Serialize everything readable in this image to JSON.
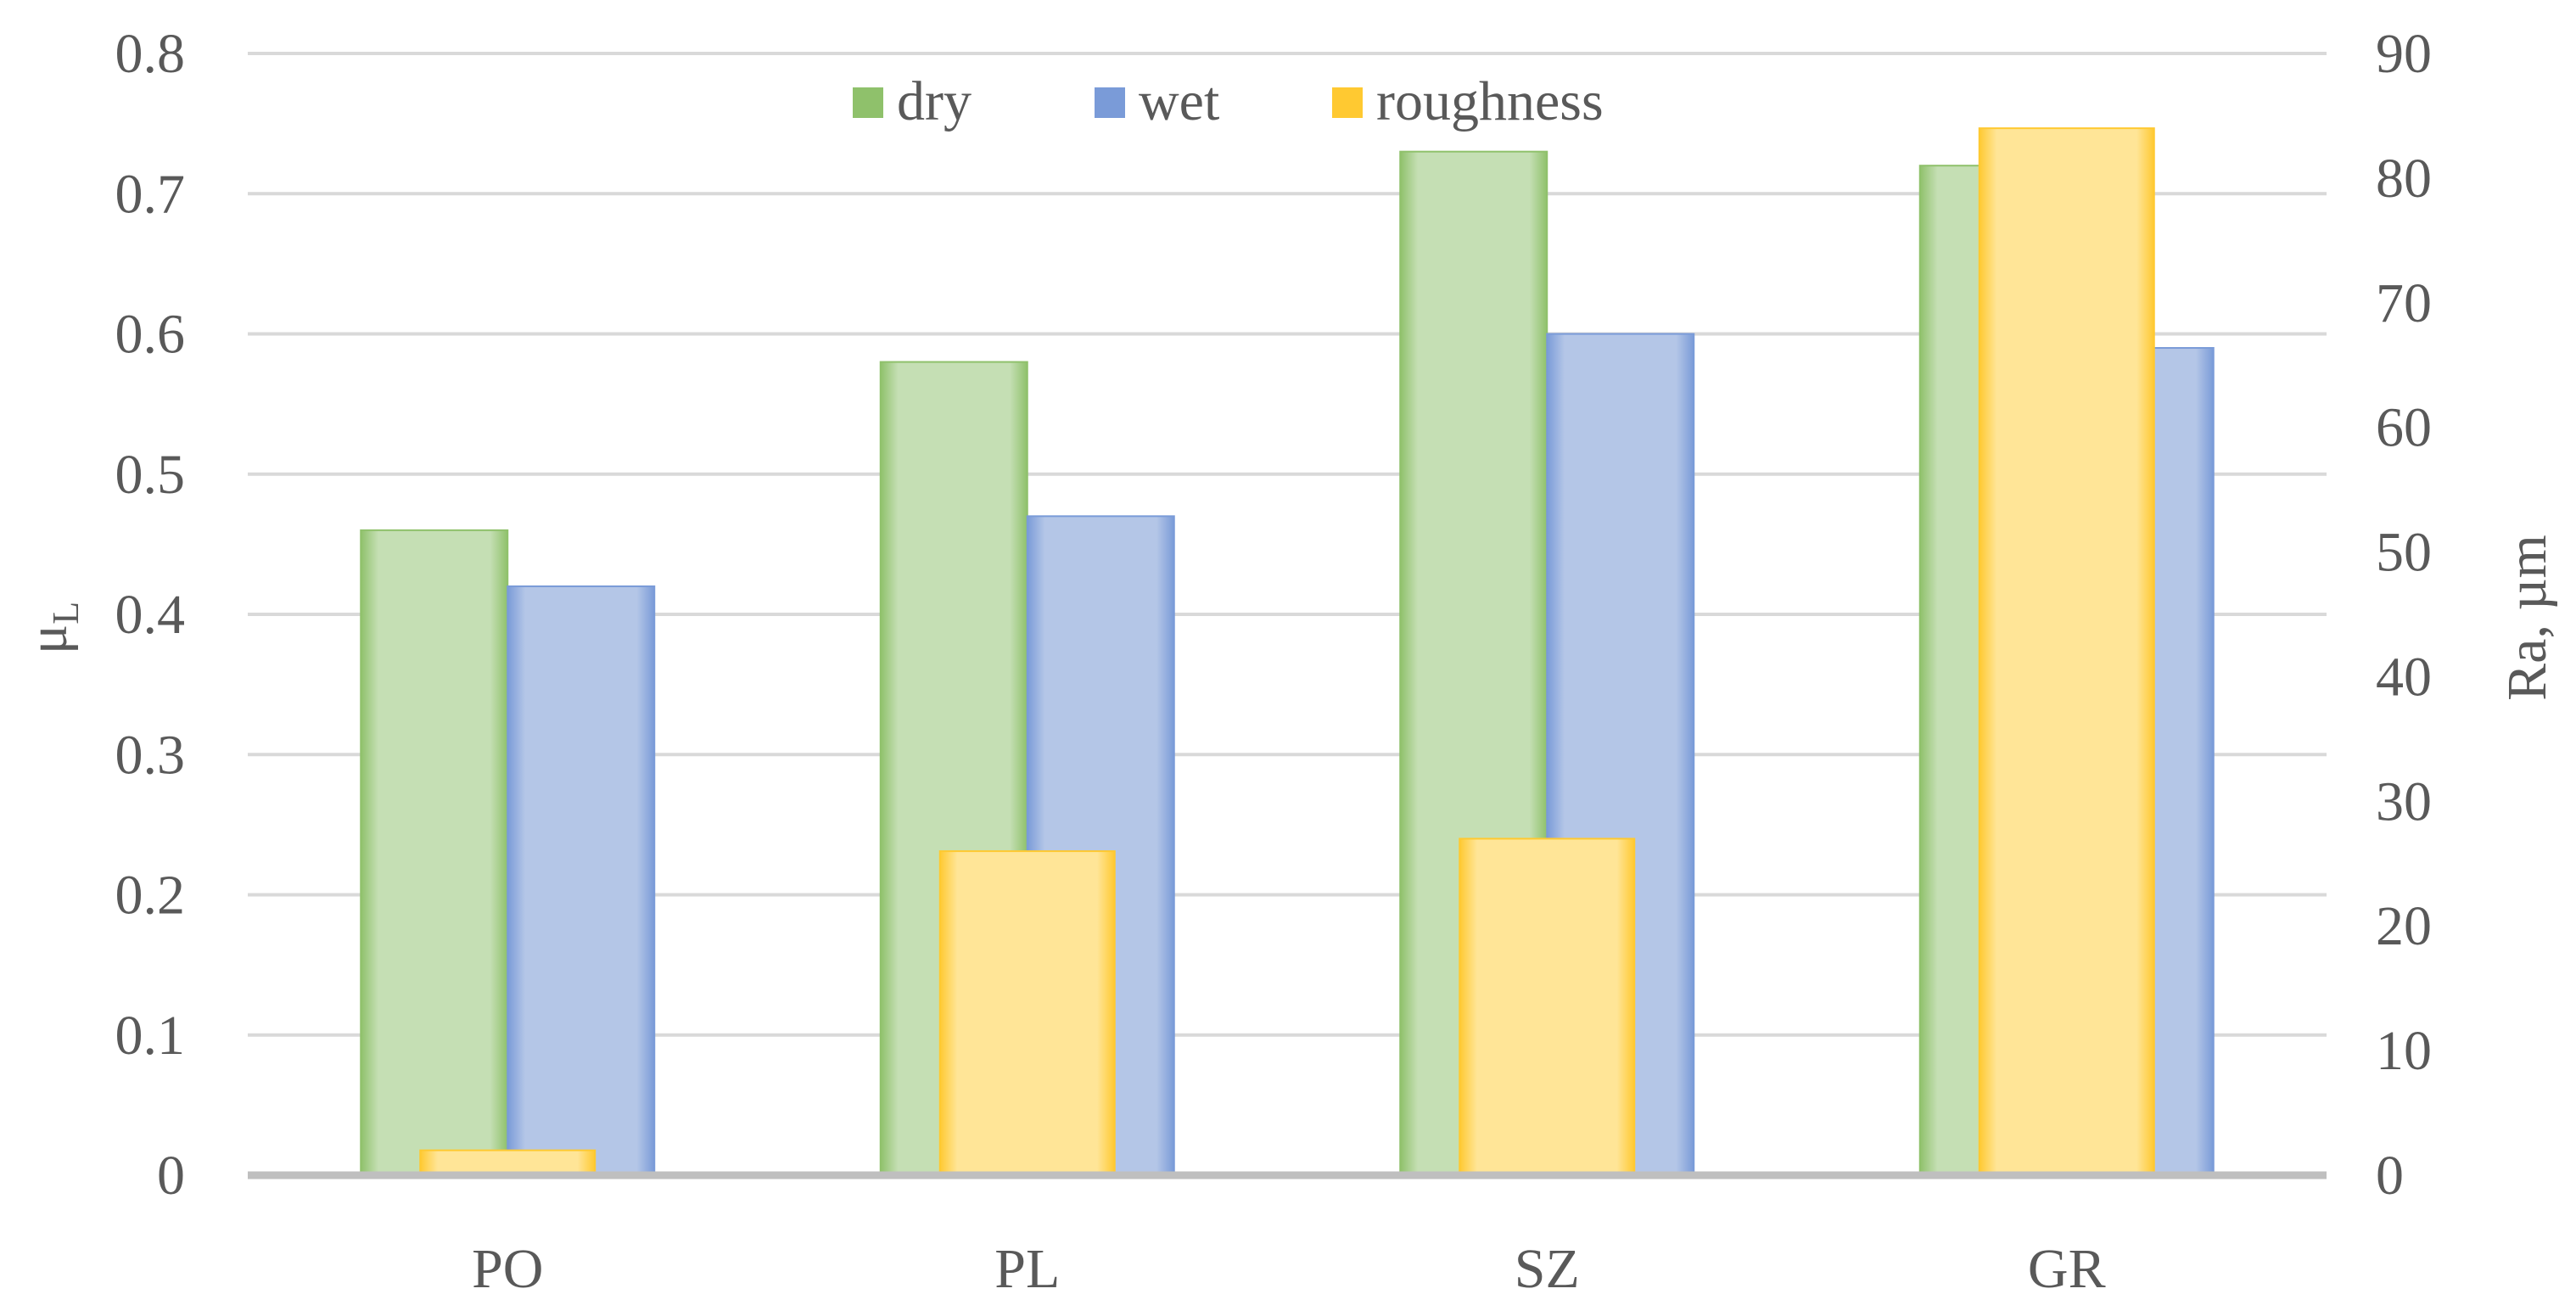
{
  "chart_data": {
    "type": "bar",
    "categories": [
      "PO",
      "PL",
      "SZ",
      "GR"
    ],
    "series": [
      {
        "name": "dry",
        "axis": "left",
        "values": [
          0.46,
          0.58,
          0.73,
          0.72
        ]
      },
      {
        "name": "wet",
        "axis": "left",
        "values": [
          0.42,
          0.47,
          0.6,
          0.59
        ]
      },
      {
        "name": "roughness",
        "axis": "right",
        "values": [
          2,
          26,
          27,
          84
        ]
      }
    ],
    "ylabel_left": "μL",
    "ylabel_left_main": "μ",
    "ylabel_left_sub": "L",
    "ylabel_right": "Ra, µm",
    "ylim_left": [
      0,
      0.8
    ],
    "ylim_right": [
      0,
      90
    ],
    "yticks_left": [
      "0",
      "0.1",
      "0.2",
      "0.3",
      "0.4",
      "0.5",
      "0.6",
      "0.7",
      "0.8"
    ],
    "yticks_right": [
      "0",
      "10",
      "20",
      "30",
      "40",
      "50",
      "60",
      "70",
      "80",
      "90"
    ],
    "grid": true,
    "legend_position": "top-center",
    "colors": {
      "dry_fill": "#c5dfb4",
      "dry_edge": "#8fc16b",
      "wet_fill": "#b4c6e7",
      "wet_edge": "#7a9bd8",
      "roughness_fill": "#ffe597",
      "roughness_edge": "#ffc931",
      "text": "#595959"
    }
  }
}
